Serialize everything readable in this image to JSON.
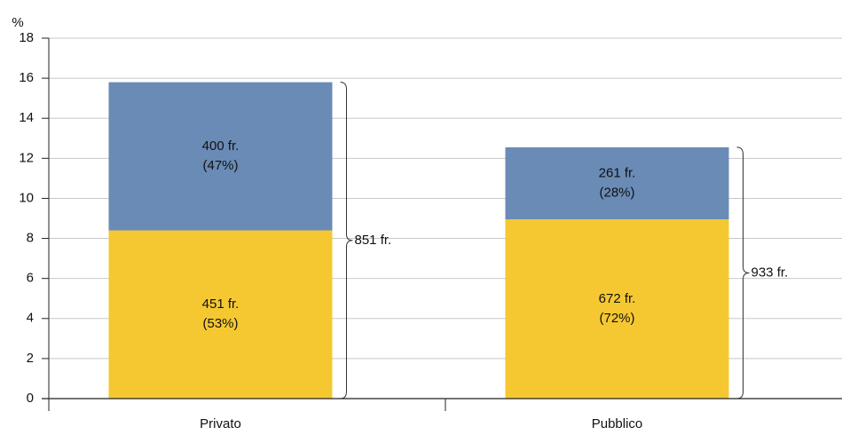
{
  "chart_data": {
    "type": "stacked_bar",
    "y_unit": "%",
    "categories": [
      "Privato",
      "Pubblico"
    ],
    "series": [
      {
        "color": "#f5c832",
        "values": [
          8.4,
          8.95
        ],
        "amounts": [
          "451 fr.",
          "672 fr."
        ],
        "shares": [
          "(53%)",
          "(72%)"
        ]
      },
      {
        "color": "#6a8bb5",
        "values": [
          7.4,
          3.6
        ],
        "amounts": [
          "400 fr.",
          "261 fr."
        ],
        "shares": [
          "(47%)",
          "(28%)"
        ]
      }
    ],
    "totals": [
      "851 fr.",
      "933 fr."
    ],
    "ylim": [
      0,
      18
    ],
    "yticks": [
      0,
      2,
      4,
      6,
      8,
      10,
      12,
      14,
      16,
      18
    ],
    "grid": true
  }
}
